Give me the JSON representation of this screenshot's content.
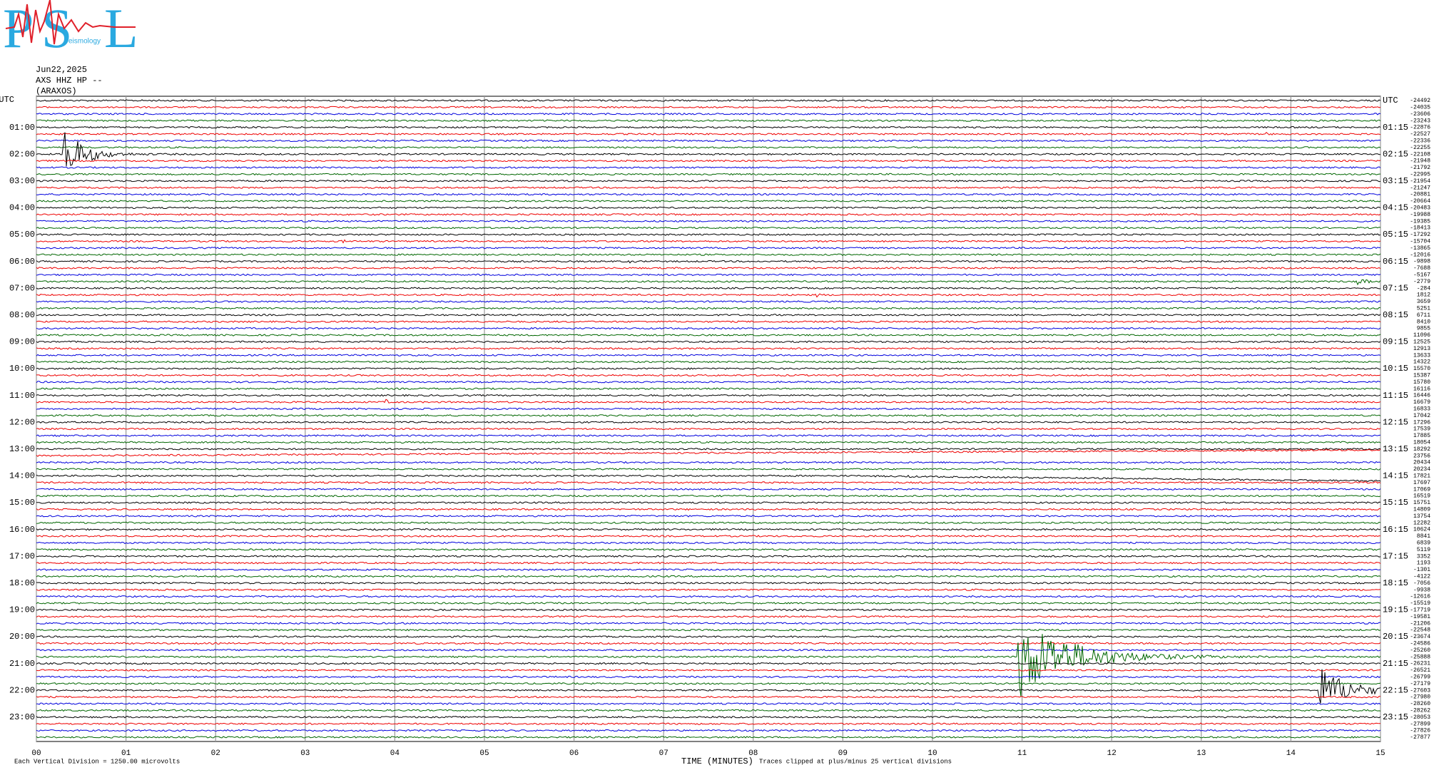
{
  "logo": {
    "letters": [
      "P",
      "S",
      "L"
    ],
    "subtitle": "eismology"
  },
  "header": {
    "date": "Jun22,2025",
    "station": "AXS HHZ HP --",
    "location": "(ARAXOS)"
  },
  "left_labels": [
    "UTC",
    "01:00",
    "02:00",
    "03:00",
    "04:00",
    "05:00",
    "06:00",
    "07:00",
    "08:00",
    "09:00",
    "10:00",
    "11:00",
    "12:00",
    "13:00",
    "14:00",
    "15:00",
    "16:00",
    "17:00",
    "18:00",
    "19:00",
    "20:00",
    "21:00",
    "22:00",
    "23:00"
  ],
  "right_labels": [
    "UTC",
    "01:15",
    "02:15",
    "03:15",
    "04:15",
    "05:15",
    "06:15",
    "07:15",
    "08:15",
    "09:15",
    "10:15",
    "11:15",
    "12:15",
    "13:15",
    "14:15",
    "15:15",
    "16:15",
    "17:15",
    "18:15",
    "19:15",
    "20:15",
    "21:15",
    "22:15",
    "23:15"
  ],
  "trace_offsets": [
    -24492,
    -24035,
    -23606,
    -23243,
    -22876,
    -22527,
    -22336,
    -22255,
    -22108,
    -21948,
    -21792,
    -22995,
    -21954,
    -21247,
    -20881,
    -20664,
    -20483,
    -19988,
    -19385,
    -18413,
    -17292,
    -15704,
    -13865,
    -12016,
    -9898,
    -7688,
    -5167,
    -2779,
    -284,
    1812,
    3659,
    5251,
    6711,
    8410,
    9855,
    11096,
    12525,
    12913,
    13633,
    14322,
    15570,
    15387,
    15780,
    16116,
    16446,
    16679,
    16833,
    17042,
    17296,
    17539,
    17885,
    18054,
    18292,
    23756,
    20434,
    20234,
    17821,
    17697,
    17069,
    16519,
    15751,
    14809,
    13754,
    12282,
    10624,
    8841,
    6839,
    5119,
    3352,
    1193,
    -1301,
    -4122,
    -7056,
    -9938,
    -12616,
    -15519,
    -17719,
    -19581,
    -21206,
    -22548,
    -23674,
    -24586,
    -25260,
    -25888,
    -26231,
    -26521,
    -26799,
    -27179,
    -27603,
    -27980,
    -28260,
    -28262,
    -28053,
    -27899,
    -27826,
    -27877
  ],
  "x_ticks": [
    "00",
    "01",
    "02",
    "03",
    "04",
    "05",
    "06",
    "07",
    "08",
    "09",
    "10",
    "11",
    "12",
    "13",
    "14",
    "15"
  ],
  "footer": {
    "scale": "Each Vertical Division = 1250.00 microvolts",
    "x_title": "TIME (MINUTES)",
    "clip_note": "Traces clipped at plus/minus 25 vertical divisions"
  }
}
